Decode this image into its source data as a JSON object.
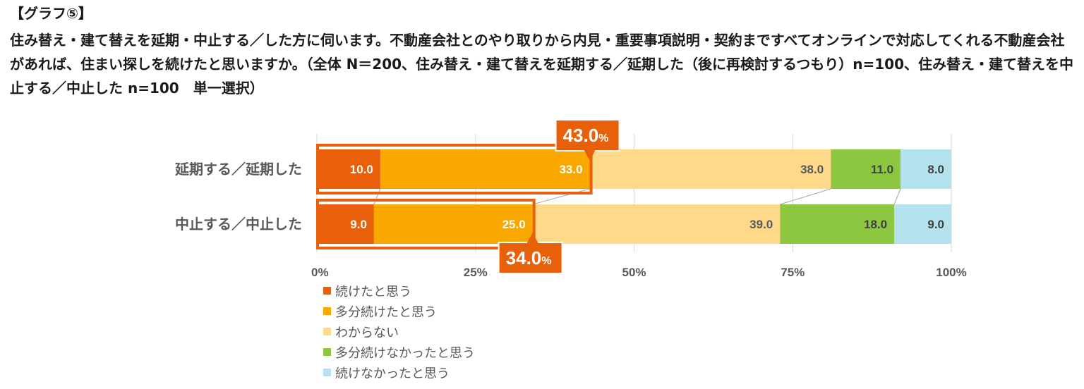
{
  "heading": "【グラフ⑤】",
  "question": "住み替え・建て替えを延期・中止する／した方に伺います。不動産会社とのやり取りから内見・重要事項説明・契約まですべてオンラインで対応してくれる不動産会社があれば、住まい探しを続けたと思いますか。（全体 N＝200、住み替え・建て替えを延期する／延期した（後に再検討するつもり）n=100、住み替え・建て替えを中止する／中止した n=100　単一選択）",
  "chart_data": {
    "type": "bar",
    "orientation": "horizontal",
    "stacked": true,
    "categories": [
      "延期する／延期した",
      "中止する／中止した"
    ],
    "series": [
      {
        "name": "続けたと思う",
        "values": [
          10.0,
          9.0
        ],
        "color": "#E8600A",
        "label_color": "#ffffff"
      },
      {
        "name": "多分続けたと思う",
        "values": [
          33.0,
          25.0
        ],
        "color": "#FAA700",
        "label_color": "#ffffff"
      },
      {
        "name": "わからない",
        "values": [
          38.0,
          39.0
        ],
        "color": "#FFD98A",
        "label_color": "#595959"
      },
      {
        "name": "多分続けなかったと思う",
        "values": [
          11.0,
          18.0
        ],
        "color": "#8DC63F",
        "label_color": "#404040"
      },
      {
        "name": "続けなかったと思う",
        "values": [
          8.0,
          9.0
        ],
        "color": "#B4E2EE",
        "label_color": "#404040"
      }
    ],
    "value_labels": [
      [
        "10.0",
        "33.0",
        "38.0",
        "11.0",
        "8.0"
      ],
      [
        "9.0",
        "25.0",
        "39.0",
        "18.0",
        "9.0"
      ]
    ],
    "xlim": [
      0,
      100
    ],
    "xticks": [
      "0%",
      "25%",
      "50%",
      "75%",
      "100%"
    ],
    "callouts": [
      {
        "category": "延期する／延期した",
        "value": 43.0,
        "number": "43.0",
        "unit": "%"
      },
      {
        "category": "中止する／中止した",
        "value": 34.0,
        "number": "34.0",
        "unit": "%"
      }
    ],
    "legend_position": "bottom-left",
    "grid": true
  }
}
